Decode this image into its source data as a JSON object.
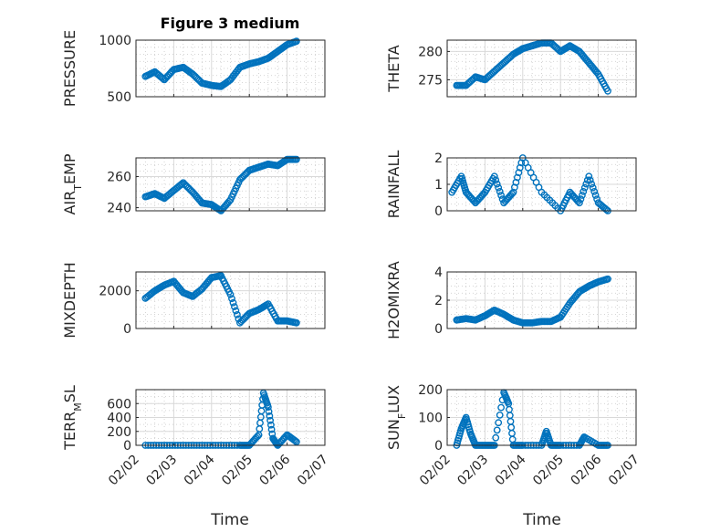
{
  "figure": {
    "title": "Figure 3 medium",
    "marker_color": "#0072BD"
  },
  "chart_data": [
    {
      "type": "scatter",
      "ylabel": "PRESSURE",
      "ylim": [
        500,
        1000
      ],
      "yticks": [
        {
          "v": 500,
          "l": "500"
        },
        {
          "v": 1000,
          "l": "1000"
        }
      ],
      "grid": true,
      "x": [
        "2024-02-02T06:00",
        "2024-02-02T12:00",
        "2024-02-02T18:00",
        "2024-02-03T00:00",
        "2024-02-03T06:00",
        "2024-02-03T12:00",
        "2024-02-03T18:00",
        "2024-02-04T00:00",
        "2024-02-04T06:00",
        "2024-02-04T12:00",
        "2024-02-04T18:00",
        "2024-02-05T00:00",
        "2024-02-05T06:00",
        "2024-02-05T12:00",
        "2024-02-05T18:00",
        "2024-02-06T00:00",
        "2024-02-06T06:00"
      ],
      "y": [
        680,
        720,
        650,
        740,
        760,
        700,
        620,
        600,
        590,
        650,
        760,
        790,
        810,
        840,
        900,
        960,
        990
      ]
    },
    {
      "type": "scatter",
      "ylabel": "THETA",
      "ylim": [
        272,
        282
      ],
      "yticks": [
        {
          "v": 275,
          "l": "275"
        },
        {
          "v": 280,
          "l": "280"
        }
      ],
      "grid": true,
      "x": [
        "2024-02-02T06:00",
        "2024-02-02T12:00",
        "2024-02-02T18:00",
        "2024-02-03T00:00",
        "2024-02-03T06:00",
        "2024-02-03T12:00",
        "2024-02-03T18:00",
        "2024-02-04T00:00",
        "2024-02-04T06:00",
        "2024-02-04T12:00",
        "2024-02-04T18:00",
        "2024-02-05T00:00",
        "2024-02-05T06:00",
        "2024-02-05T12:00",
        "2024-02-05T18:00",
        "2024-02-06T00:00",
        "2024-02-06T06:00"
      ],
      "y": [
        274,
        274,
        275.5,
        275,
        276.5,
        278,
        279.5,
        280.5,
        281,
        281.5,
        281.5,
        280,
        281,
        280,
        278,
        276,
        273
      ]
    },
    {
      "type": "scatter",
      "ylabel": "AIR_TEMP",
      "ylim": [
        238,
        272
      ],
      "yticks": [
        {
          "v": 240,
          "l": "240"
        },
        {
          "v": 260,
          "l": "260"
        }
      ],
      "grid": true,
      "x": [
        "2024-02-02T06:00",
        "2024-02-02T12:00",
        "2024-02-02T18:00",
        "2024-02-03T00:00",
        "2024-02-03T06:00",
        "2024-02-03T12:00",
        "2024-02-03T18:00",
        "2024-02-04T00:00",
        "2024-02-04T06:00",
        "2024-02-04T12:00",
        "2024-02-04T18:00",
        "2024-02-05T00:00",
        "2024-02-05T06:00",
        "2024-02-05T12:00",
        "2024-02-05T18:00",
        "2024-02-06T00:00",
        "2024-02-06T06:00"
      ],
      "y": [
        247,
        249,
        246,
        251,
        256,
        250,
        243,
        242,
        238,
        245,
        258,
        264,
        266,
        268,
        267,
        271,
        271
      ]
    },
    {
      "type": "scatter",
      "ylabel": "RAINFALL",
      "ylim": [
        0,
        2
      ],
      "yticks": [
        {
          "v": 0,
          "l": "0"
        },
        {
          "v": 1,
          "l": "1"
        },
        {
          "v": 2,
          "l": "2"
        }
      ],
      "grid": true,
      "x": [
        "2024-02-02T03:00",
        "2024-02-02T09:00",
        "2024-02-02T12:00",
        "2024-02-02T18:00",
        "2024-02-03T00:00",
        "2024-02-03T06:00",
        "2024-02-03T12:00",
        "2024-02-03T18:00",
        "2024-02-04T00:00",
        "2024-02-04T12:00",
        "2024-02-05T00:00",
        "2024-02-05T06:00",
        "2024-02-05T12:00",
        "2024-02-05T18:00",
        "2024-02-06T00:00",
        "2024-02-06T06:00"
      ],
      "y": [
        0.7,
        1.3,
        0.7,
        0.3,
        0.7,
        1.3,
        0.3,
        0.7,
        2.0,
        0.7,
        0.0,
        0.7,
        0.3,
        1.3,
        0.3,
        0.0
      ]
    },
    {
      "type": "scatter",
      "ylabel": "MIXDEPTH",
      "ylim": [
        0,
        3000
      ],
      "yticks": [
        {
          "v": 0,
          "l": "0"
        },
        {
          "v": 2000,
          "l": "2000"
        }
      ],
      "grid": true,
      "x": [
        "2024-02-02T06:00",
        "2024-02-02T12:00",
        "2024-02-02T18:00",
        "2024-02-03T00:00",
        "2024-02-03T06:00",
        "2024-02-03T12:00",
        "2024-02-03T18:00",
        "2024-02-04T00:00",
        "2024-02-04T06:00",
        "2024-02-04T12:00",
        "2024-02-04T18:00",
        "2024-02-05T00:00",
        "2024-02-05T06:00",
        "2024-02-05T12:00",
        "2024-02-05T18:00",
        "2024-02-06T00:00",
        "2024-02-06T06:00"
      ],
      "y": [
        1600,
        2000,
        2300,
        2500,
        1900,
        1700,
        2100,
        2700,
        2800,
        1800,
        300,
        800,
        1000,
        1300,
        400,
        400,
        300
      ]
    },
    {
      "type": "scatter",
      "ylabel": "H2OMIXRA",
      "ylim": [
        0,
        4
      ],
      "yticks": [
        {
          "v": 0,
          "l": "0"
        },
        {
          "v": 2,
          "l": "2"
        },
        {
          "v": 4,
          "l": "4"
        }
      ],
      "grid": true,
      "x": [
        "2024-02-02T06:00",
        "2024-02-02T12:00",
        "2024-02-02T18:00",
        "2024-02-03T00:00",
        "2024-02-03T06:00",
        "2024-02-03T12:00",
        "2024-02-03T18:00",
        "2024-02-04T00:00",
        "2024-02-04T06:00",
        "2024-02-04T12:00",
        "2024-02-04T18:00",
        "2024-02-05T00:00",
        "2024-02-05T06:00",
        "2024-02-05T12:00",
        "2024-02-05T18:00",
        "2024-02-06T00:00",
        "2024-02-06T06:00"
      ],
      "y": [
        0.6,
        0.7,
        0.6,
        0.9,
        1.3,
        1.0,
        0.6,
        0.4,
        0.4,
        0.5,
        0.5,
        0.8,
        1.8,
        2.6,
        3.0,
        3.3,
        3.5
      ]
    },
    {
      "type": "scatter",
      "ylabel": "TERR_MSL",
      "ylim": [
        0,
        800
      ],
      "yticks": [
        {
          "v": 0,
          "l": "0"
        },
        {
          "v": 200,
          "l": "200"
        },
        {
          "v": 400,
          "l": "400"
        },
        {
          "v": 600,
          "l": "600"
        }
      ],
      "grid": true,
      "x": [
        "2024-02-02T06:00",
        "2024-02-02T18:00",
        "2024-02-03T06:00",
        "2024-02-03T18:00",
        "2024-02-04T06:00",
        "2024-02-04T18:00",
        "2024-02-05T00:00",
        "2024-02-05T06:00",
        "2024-02-05T09:00",
        "2024-02-05T12:00",
        "2024-02-05T15:00",
        "2024-02-05T18:00",
        "2024-02-06T00:00",
        "2024-02-06T06:00"
      ],
      "y": [
        0,
        0,
        0,
        0,
        0,
        0,
        0,
        150,
        750,
        550,
        100,
        0,
        150,
        50
      ]
    },
    {
      "type": "scatter",
      "ylabel": "SUN_FLUX",
      "ylim": [
        0,
        200
      ],
      "yticks": [
        {
          "v": 0,
          "l": "0"
        },
        {
          "v": 100,
          "l": "100"
        },
        {
          "v": 200,
          "l": "200"
        }
      ],
      "grid": true,
      "x": [
        "2024-02-02T06:00",
        "2024-02-02T09:00",
        "2024-02-02T12:00",
        "2024-02-02T15:00",
        "2024-02-02T18:00",
        "2024-02-03T00:00",
        "2024-02-03T06:00",
        "2024-02-03T12:00",
        "2024-02-03T15:00",
        "2024-02-03T18:00",
        "2024-02-04T00:00",
        "2024-02-04T12:00",
        "2024-02-04T15:00",
        "2024-02-04T18:00",
        "2024-02-05T00:00",
        "2024-02-05T12:00",
        "2024-02-05T15:00",
        "2024-02-06T00:00",
        "2024-02-06T06:00"
      ],
      "y": [
        0,
        60,
        100,
        40,
        0,
        0,
        0,
        190,
        150,
        0,
        0,
        0,
        50,
        0,
        0,
        0,
        30,
        0,
        0
      ]
    }
  ],
  "xaxis": {
    "xlim": [
      "2024-02-02",
      "2024-02-07"
    ],
    "ticks": [
      "02/02",
      "02/03",
      "02/04",
      "02/05",
      "02/06",
      "02/07"
    ],
    "xlabel": "Time"
  }
}
